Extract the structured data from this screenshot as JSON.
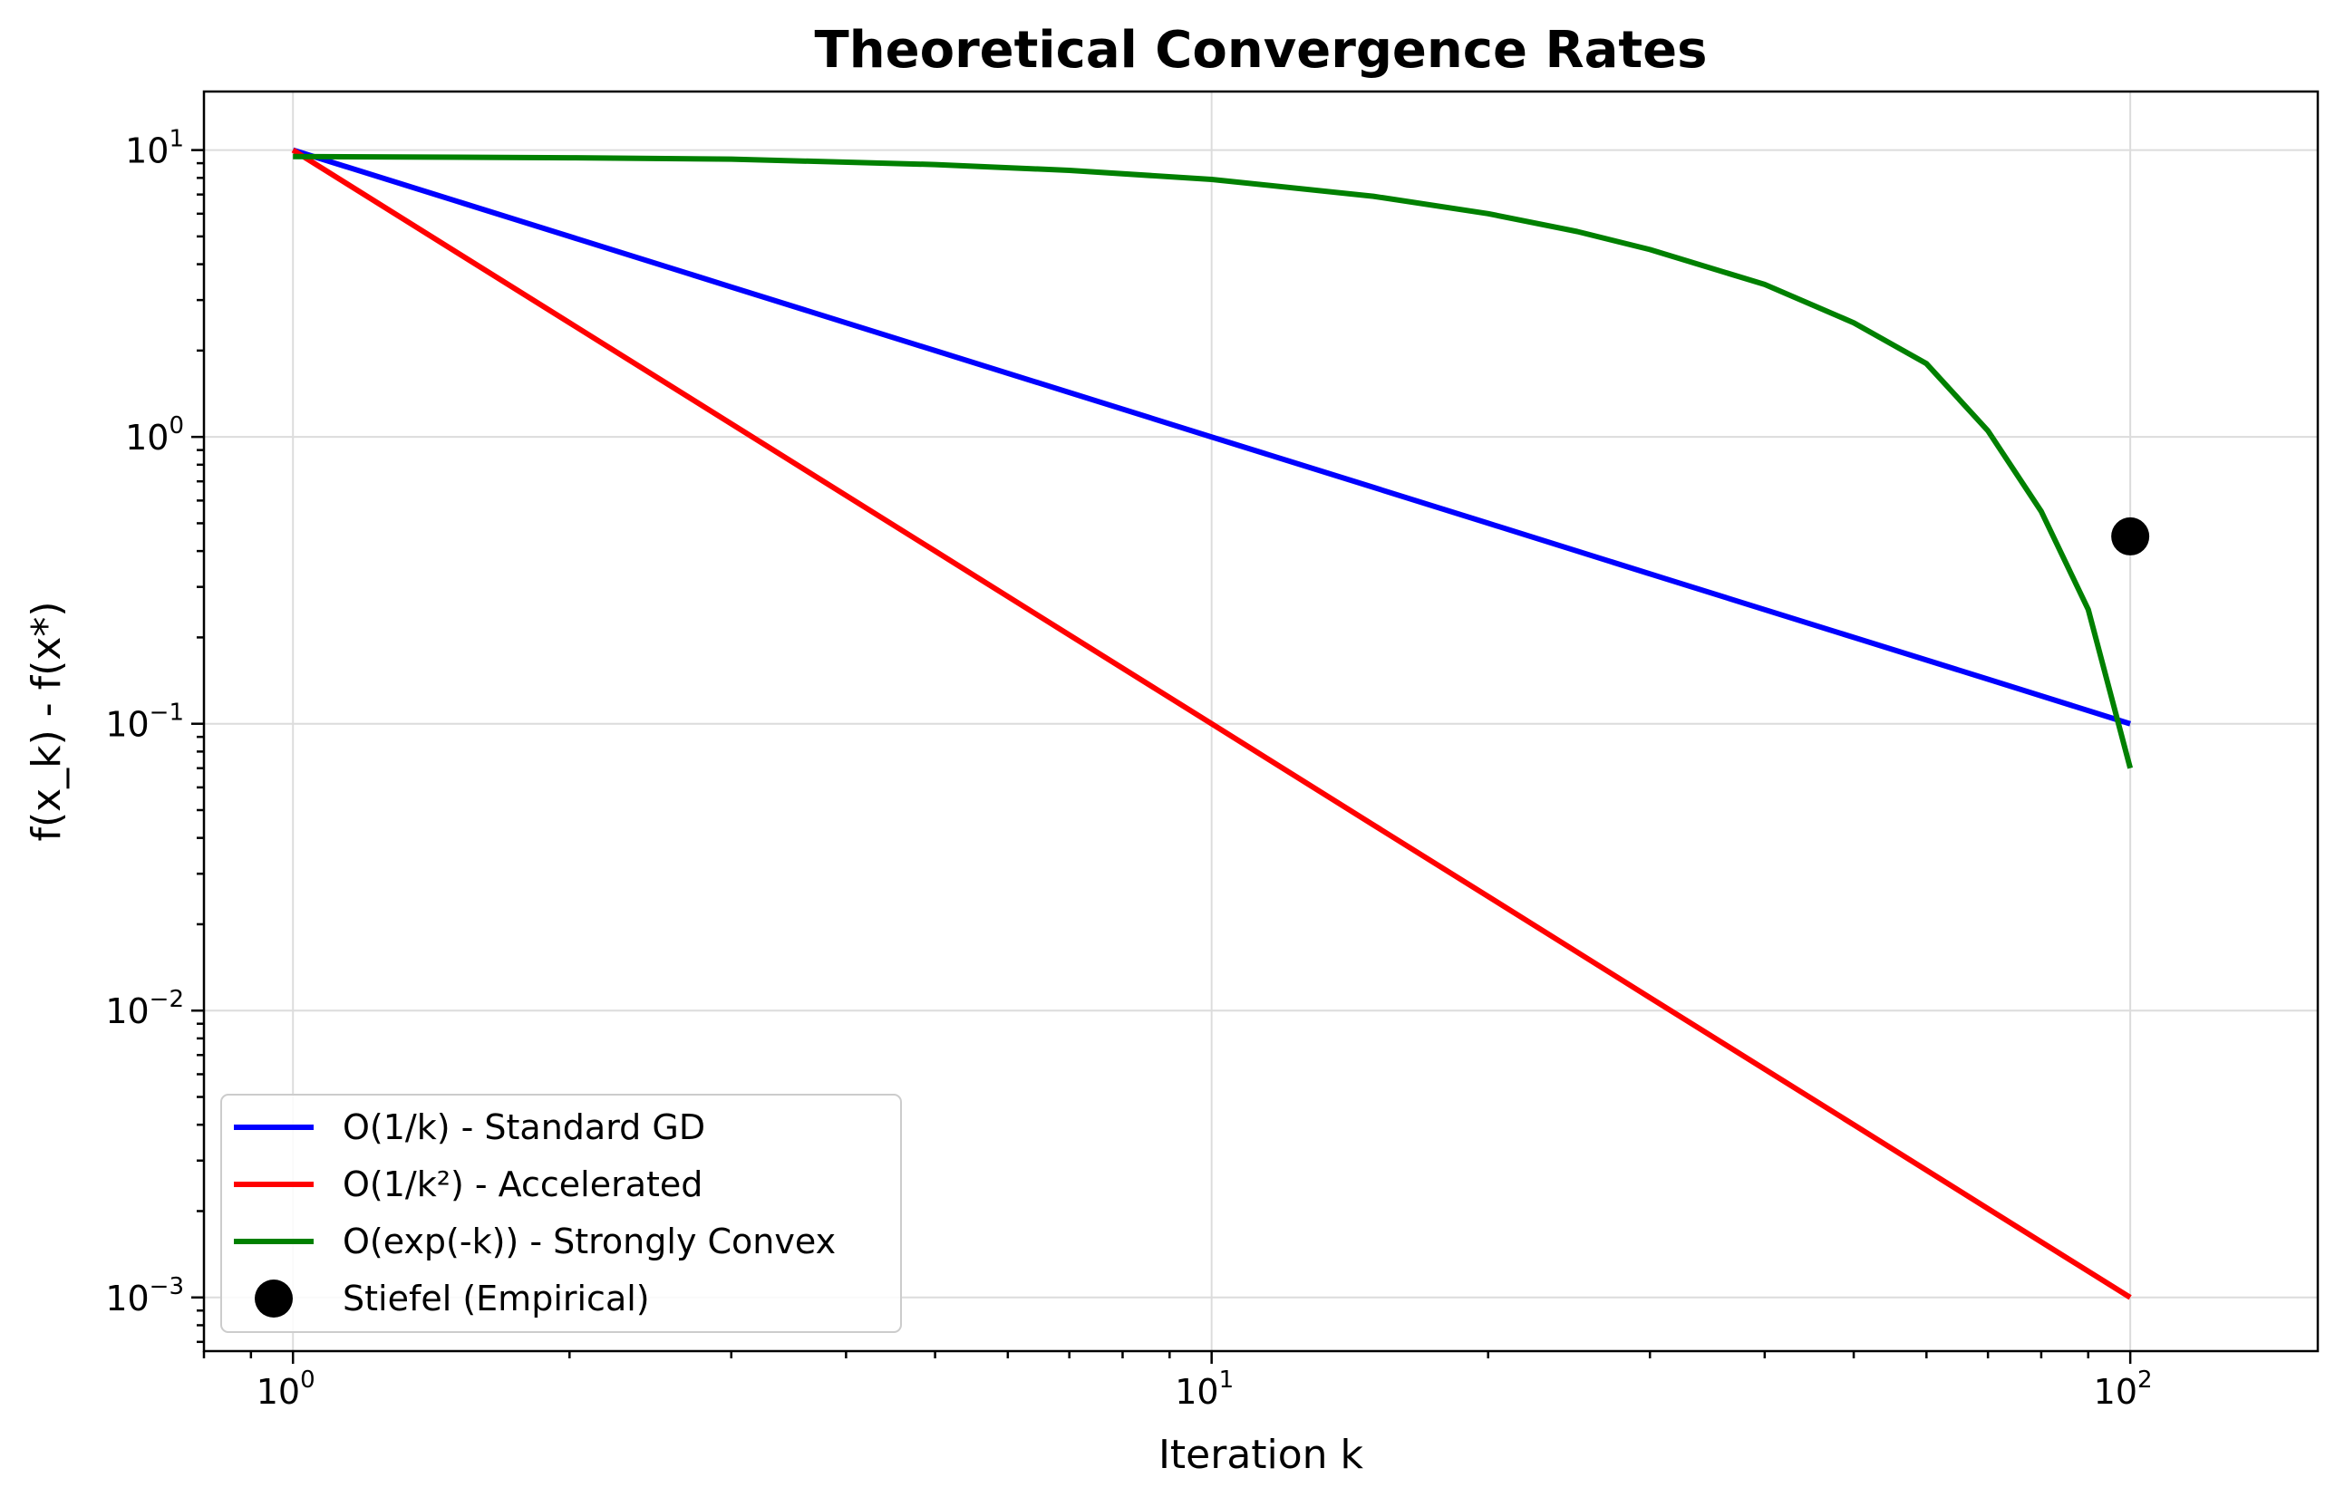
{
  "chart_data": {
    "type": "line",
    "title": "Theoretical Convergence Rates",
    "xlabel": "Iteration k",
    "ylabel": "f(x_k) - f(x*)",
    "xscale": "log",
    "yscale": "log",
    "xlim": [
      0.8,
      160
    ],
    "ylim": [
      0.00065,
      16
    ],
    "grid": true,
    "legend_position": "lower-left",
    "x_ticks": [
      {
        "value": 1,
        "base": "10",
        "exp": "0"
      },
      {
        "value": 10,
        "base": "10",
        "exp": "1"
      },
      {
        "value": 100,
        "base": "10",
        "exp": "2"
      }
    ],
    "y_ticks": [
      {
        "value": 10,
        "base": "10",
        "exp": "1"
      },
      {
        "value": 1,
        "base": "10",
        "exp": "0"
      },
      {
        "value": 0.1,
        "base": "10",
        "exp": "−1"
      },
      {
        "value": 0.01,
        "base": "10",
        "exp": "−2"
      },
      {
        "value": 0.001,
        "base": "10",
        "exp": "−3"
      }
    ],
    "series": [
      {
        "name": "O(1/k) - Standard GD",
        "color": "#0000ff",
        "x": [
          1,
          2,
          3,
          5,
          7,
          10,
          15,
          20,
          30,
          50,
          70,
          100
        ],
        "y": [
          10,
          5,
          3.333,
          2,
          1.429,
          1,
          0.667,
          0.5,
          0.333,
          0.2,
          0.143,
          0.1
        ]
      },
      {
        "name": "O(1/k²) - Accelerated",
        "color": "#ff0000",
        "x": [
          1,
          2,
          3,
          5,
          7,
          10,
          15,
          20,
          30,
          50,
          70,
          100
        ],
        "y": [
          10,
          2.5,
          1.111,
          0.4,
          0.204,
          0.1,
          0.0444,
          0.025,
          0.0111,
          0.004,
          0.00204,
          0.001
        ]
      },
      {
        "name": "O(exp(-k)) - Strongly Convex",
        "color": "#008000",
        "x": [
          1,
          2,
          3,
          5,
          7,
          10,
          15,
          20,
          25,
          30,
          40,
          50,
          60,
          70,
          80,
          90,
          100
        ],
        "y": [
          9.5,
          9.4,
          9.3,
          8.9,
          8.5,
          7.9,
          6.9,
          6.0,
          5.2,
          4.5,
          3.4,
          2.5,
          1.8,
          1.05,
          0.55,
          0.25,
          0.07
        ]
      },
      {
        "name": "Stiefel (Empirical)",
        "color": "#000000",
        "marker": "circle",
        "x": [
          100
        ],
        "y": [
          0.45
        ]
      }
    ]
  }
}
